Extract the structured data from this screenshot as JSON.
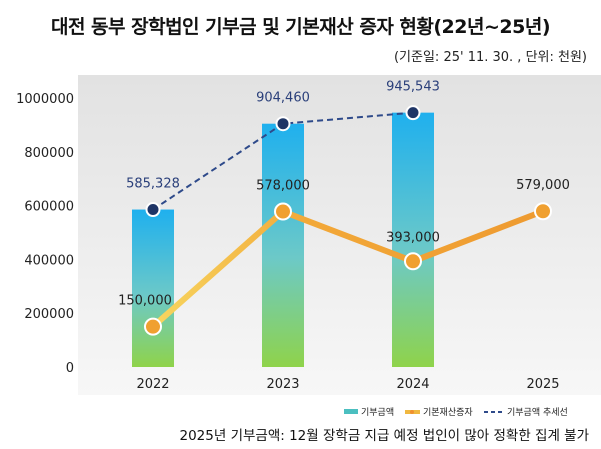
{
  "chart_data": {
    "type": "bar",
    "title": "대전 동부 장학법인 기부금 및 기본재산 증자 현황(22년~25년)",
    "subtitle": "(기준일: 25' 11. 30. , 단위: 천원)",
    "categories": [
      "2022",
      "2023",
      "2024",
      "2025"
    ],
    "ylim": [
      0,
      1000000
    ],
    "yticks": [
      "0",
      "200000",
      "400000",
      "600000",
      "800000",
      "1000000"
    ],
    "grid": false,
    "legend_placement": "bottom-right",
    "series": [
      {
        "name": "기부금액",
        "type": "bar",
        "values": [
          585328,
          904460,
          945543,
          null
        ],
        "labels": [
          "585,328",
          "904,460",
          "945,543",
          ""
        ],
        "color": "#3bb8e8"
      },
      {
        "name": "기본재산증자",
        "type": "line",
        "values": [
          150000,
          578000,
          393000,
          579000
        ],
        "labels": [
          "150,000",
          "578,000",
          "393,000",
          "579,000"
        ],
        "color": "#f0a030"
      },
      {
        "name": "기부금액 추세선",
        "type": "dashed-line",
        "values": [
          585328,
          904460,
          945543,
          null
        ],
        "color": "#2e4a8a"
      }
    ],
    "note": "2025년 기부금액: 12월 장학금 지급 예정 법인이 많아 정확한 집계 불가"
  }
}
